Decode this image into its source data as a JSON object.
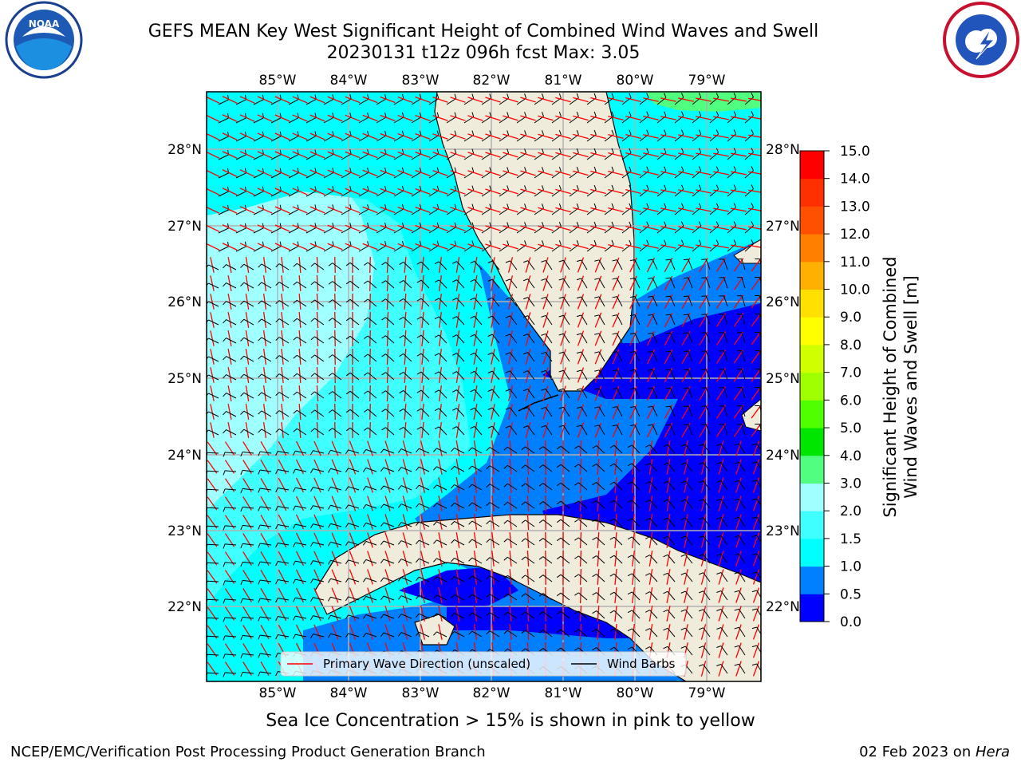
{
  "title": {
    "line1": "GEFS MEAN Key West Significant Height of Combined Wind Waves and Swell",
    "line2": "20230131 t12z 096h fcst   Max: 3.05"
  },
  "logos": {
    "left": "noaa-logo",
    "right": "nws-logo"
  },
  "map": {
    "lon_ticks": [
      "85°W",
      "84°W",
      "83°W",
      "82°W",
      "81°W",
      "80°W",
      "79°W"
    ],
    "lat_ticks": [
      "28°N",
      "27°N",
      "26°N",
      "25°N",
      "24°N",
      "23°N",
      "22°N"
    ],
    "land_color": "#efecdc",
    "grid_color": "#b0b0b0"
  },
  "legend": {
    "wave_label": "Primary Wave Direction (unscaled)",
    "barb_label": "Wind Barbs",
    "wave_color": "#ff0000",
    "barb_color": "#000000"
  },
  "colorbar": {
    "label_line1": "Significant Height of Combined",
    "label_line2": "Wind Waves and Swell [m]",
    "ticks": [
      "0.0",
      "0.5",
      "1.0",
      "1.5",
      "2.0",
      "3.0",
      "4.0",
      "5.0",
      "6.0",
      "7.0",
      "8.0",
      "9.0",
      "10.0",
      "11.0",
      "12.0",
      "13.0",
      "14.0",
      "15.0"
    ],
    "colors": [
      "#0000ff",
      "#0080ff",
      "#00ffff",
      "#40ffff",
      "#a0ffff",
      "#50ff80",
      "#00e600",
      "#50ff00",
      "#a0ff00",
      "#d0ff00",
      "#ffff00",
      "#ffe000",
      "#ffb000",
      "#ff8000",
      "#ff5000",
      "#ff3000",
      "#ff0000"
    ]
  },
  "caption": "Sea Ice Concentration > 15% is shown in pink to yellow",
  "footer": {
    "left": "NCEP/EMC/Verification Post Processing Product Generation Branch",
    "right_prefix": "02 Feb 2023 on ",
    "right_host": "Hera"
  }
}
